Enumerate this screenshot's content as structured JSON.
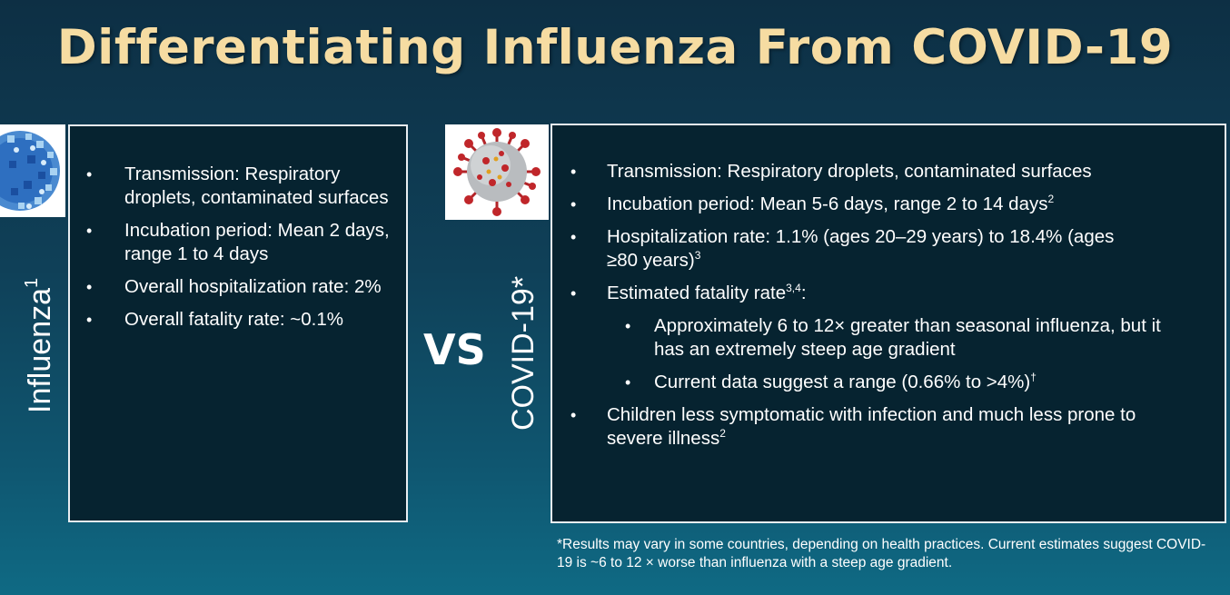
{
  "slide": {
    "title": "Differentiating Influenza From COVID-19",
    "vs_label": "VS",
    "footnote": "*Results may vary in some countries, depending on health practices. Current estimates suggest COVID-19 is ~6 to 12 × worse than influenza with a steep age gradient."
  },
  "influenza": {
    "label": "Influenza",
    "label_ref": "1",
    "icon": "influenza-virus-icon",
    "bullets": [
      {
        "text": "Transmission: Respiratory droplets, contaminated surfaces",
        "ref": ""
      },
      {
        "text": "Incubation period: Mean 2 days,",
        "text2": "range 1 to 4 days",
        "ref": ""
      },
      {
        "text": "Overall hospitalization rate: 2%",
        "ref": ""
      },
      {
        "text": "Overall fatality rate: ~0.1%",
        "ref": ""
      }
    ]
  },
  "covid": {
    "label": "COVID-19*",
    "icon": "coronavirus-icon",
    "bullets": [
      {
        "text": "Transmission: Respiratory droplets, contaminated surfaces",
        "ref": ""
      },
      {
        "text": "Incubation period: Mean 5-6 days, range 2 to 14 days",
        "ref": "2"
      },
      {
        "text": "Hospitalization rate: 1.1% (ages 20–29 years) to 18.4% (ages ≥80 years)",
        "ref": "3"
      },
      {
        "text": "Estimated fatality rate",
        "ref": "3,4",
        "suffix": ":"
      },
      {
        "text": "Children less symptomatic with infection and much less prone to severe illness",
        "ref": "2"
      }
    ],
    "sub_bullets": [
      {
        "text": "Approximately 6 to 12× greater than seasonal influenza, but it has an extremely steep age gradient",
        "ref": ""
      },
      {
        "text": "Current data suggest a range (0.66% to >4%)",
        "ref": "†"
      }
    ]
  },
  "colors": {
    "title": "#f6dca2",
    "box_bg": "#062330",
    "box_border": "#e8eef2",
    "covid_spike": "#c0262a"
  }
}
